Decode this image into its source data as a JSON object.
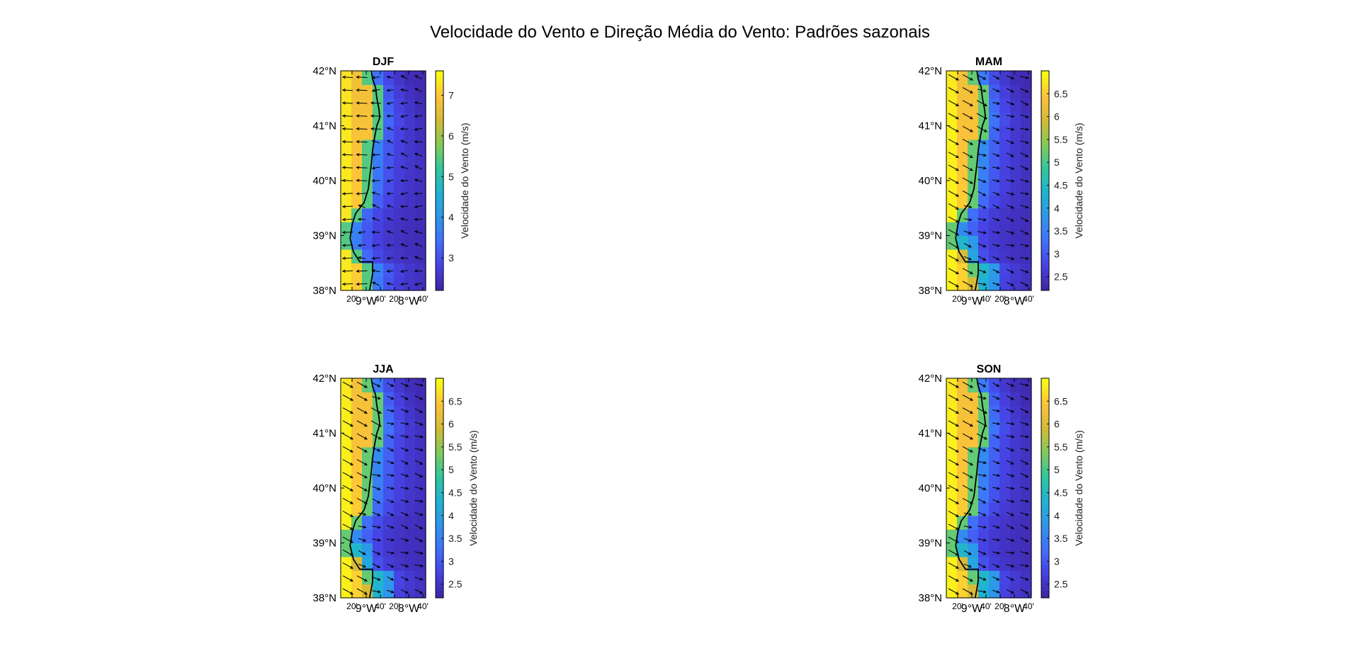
{
  "figure_title": "Velocidade do Vento e Direção Média do Vento: Padrões sazonais",
  "colormap": [
    "#3e26a8",
    "#4743e4",
    "#3f72fb",
    "#2e96eb",
    "#1fb3d2",
    "#31c79d",
    "#82cb59",
    "#d4bb35",
    "#fdc33a",
    "#f9fb14"
  ],
  "coastline_color": "#000000",
  "arrow_color": "#000000",
  "chart_data": [
    {
      "type": "heatmap",
      "title": "DJF",
      "colorbar_label": "Velocidade do Vento (m/s)",
      "colorbar_range": [
        2.2,
        7.6
      ],
      "colorbar_ticks": [
        "3",
        "4",
        "5",
        "6",
        "7"
      ],
      "colorbar_tick_values": [
        3,
        4,
        5,
        6,
        7
      ],
      "lon_range": [
        -9.6,
        -7.6
      ],
      "lat_range": [
        38,
        42
      ],
      "lat_tick_labels": [
        "38°N",
        "39°N",
        "40°N",
        "41°N",
        "42°N"
      ],
      "lat_tick_values": [
        38,
        39,
        40,
        41,
        42
      ],
      "lon_tick_labels": [
        "20'",
        "9°W",
        "40'",
        "20'",
        "8°W",
        "40'"
      ],
      "lon_tick_values": [
        -9.3333,
        -9.0,
        -8.6667,
        -8.3333,
        -8.0,
        -7.6667
      ],
      "wind_direction": "from east (offshore)",
      "speed_range": [
        2.3,
        7.4
      ]
    },
    {
      "type": "heatmap",
      "title": "MAM",
      "colorbar_label": "Velocidade do Vento (m/s)",
      "colorbar_range": [
        2.2,
        7.0
      ],
      "colorbar_ticks": [
        "2.5",
        "3",
        "3.5",
        "4",
        "4.5",
        "5",
        "5.5",
        "6",
        "6.5"
      ],
      "colorbar_tick_values": [
        2.5,
        3,
        3.5,
        4,
        4.5,
        5,
        5.5,
        6,
        6.5
      ],
      "lon_range": [
        -9.6,
        -7.6
      ],
      "lat_range": [
        38,
        42
      ],
      "lat_tick_labels": [
        "38°N",
        "39°N",
        "40°N",
        "41°N",
        "42°N"
      ],
      "lat_tick_values": [
        38,
        39,
        40,
        41,
        42
      ],
      "lon_tick_labels": [
        "20'",
        "9°W",
        "40'",
        "20'",
        "8°W",
        "40'"
      ],
      "lon_tick_values": [
        -9.3333,
        -9.0,
        -8.6667,
        -8.3333,
        -8.0,
        -7.6667
      ],
      "wind_direction": "from north-west",
      "speed_range": [
        2.3,
        6.9
      ]
    },
    {
      "type": "heatmap",
      "title": "JJA",
      "colorbar_label": "Velocidade do Vento (m/s)",
      "colorbar_range": [
        2.2,
        7.0
      ],
      "colorbar_ticks": [
        "2.5",
        "3",
        "3.5",
        "4",
        "4.5",
        "5",
        "5.5",
        "6",
        "6.5"
      ],
      "colorbar_tick_values": [
        2.5,
        3,
        3.5,
        4,
        4.5,
        5,
        5.5,
        6,
        6.5
      ],
      "lon_range": [
        -9.6,
        -7.6
      ],
      "lat_range": [
        38,
        42
      ],
      "lat_tick_labels": [
        "38°N",
        "39°N",
        "40°N",
        "41°N",
        "42°N"
      ],
      "lat_tick_values": [
        38,
        39,
        40,
        41,
        42
      ],
      "lon_tick_labels": [
        "20'",
        "9°W",
        "40'",
        "20'",
        "8°W",
        "40'"
      ],
      "lon_tick_values": [
        -9.3333,
        -9.0,
        -8.6667,
        -8.3333,
        -8.0,
        -7.6667
      ],
      "wind_direction": "from north-west",
      "speed_range": [
        2.3,
        6.9
      ]
    },
    {
      "type": "heatmap",
      "title": "SON",
      "colorbar_label": "Velocidade do Vento (m/s)",
      "colorbar_range": [
        2.2,
        7.0
      ],
      "colorbar_ticks": [
        "2.5",
        "3",
        "3.5",
        "4",
        "4.5",
        "5",
        "5.5",
        "6",
        "6.5"
      ],
      "colorbar_tick_values": [
        2.5,
        3,
        3.5,
        4,
        4.5,
        5,
        5.5,
        6,
        6.5
      ],
      "lon_range": [
        -9.6,
        -7.6
      ],
      "lat_range": [
        38,
        42
      ],
      "lat_tick_labels": [
        "38°N",
        "39°N",
        "40°N",
        "41°N",
        "42°N"
      ],
      "lat_tick_values": [
        38,
        39,
        40,
        41,
        42
      ],
      "lon_tick_labels": [
        "20'",
        "9°W",
        "40'",
        "20'",
        "8°W",
        "40'"
      ],
      "lon_tick_values": [
        -9.3333,
        -9.0,
        -8.6667,
        -8.3333,
        -8.0,
        -7.6667
      ],
      "wind_direction": "from north-west",
      "speed_range": [
        2.3,
        6.9
      ]
    }
  ]
}
